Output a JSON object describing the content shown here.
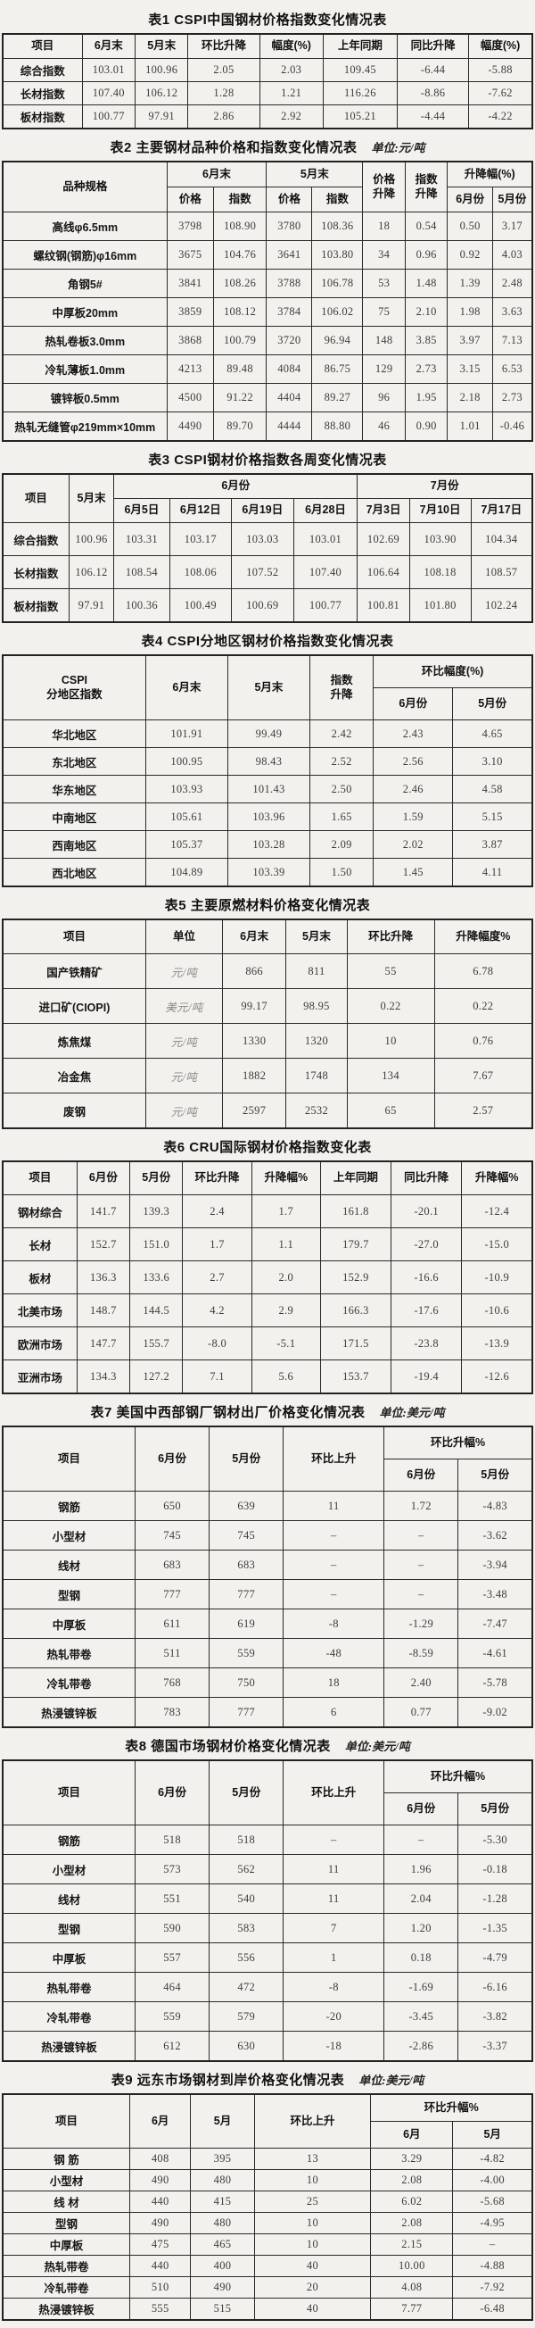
{
  "tables": [
    {
      "id": "t1",
      "title": "表1  CSPI中国钢材价格指数变化情况表",
      "unit": "",
      "header": [
        [
          {
            "t": "项目"
          },
          {
            "t": "6月末"
          },
          {
            "t": "5月末"
          },
          {
            "t": "环比升降"
          },
          {
            "t": "幅度(%)"
          },
          {
            "t": "上年同期"
          },
          {
            "t": "同比升降"
          },
          {
            "t": "幅度(%)"
          }
        ]
      ],
      "rows": [
        [
          "综合指数",
          "103.01",
          "100.96",
          "2.05",
          "2.03",
          "109.45",
          "-6.44",
          "-5.88"
        ],
        [
          "长材指数",
          "107.40",
          "106.12",
          "1.28",
          "1.21",
          "116.26",
          "-8.86",
          "-7.62"
        ],
        [
          "板材指数",
          "100.77",
          "97.91",
          "2.86",
          "2.92",
          "105.21",
          "-4.44",
          "-4.22"
        ]
      ]
    },
    {
      "id": "t2",
      "title": "表2  主要钢材品种价格和指数变化情况表",
      "unit": "单位:元/吨",
      "header": [
        [
          {
            "t": "品种规格",
            "rs": 2
          },
          {
            "t": "6月末",
            "cs": 2
          },
          {
            "t": "5月末",
            "cs": 2
          },
          {
            "t": "价格\n升降",
            "rs": 2
          },
          {
            "t": "指数\n升降",
            "rs": 2
          },
          {
            "t": "升降幅(%)",
            "cs": 2
          }
        ],
        [
          {
            "t": "价格"
          },
          {
            "t": "指数"
          },
          {
            "t": "价格"
          },
          {
            "t": "指数"
          },
          {
            "t": "6月份"
          },
          {
            "t": "5月份"
          }
        ]
      ],
      "rows": [
        [
          "高线φ6.5mm",
          "3798",
          "108.90",
          "3780",
          "108.36",
          "18",
          "0.54",
          "0.50",
          "3.17"
        ],
        [
          "螺纹钢(钢筋)φ16mm",
          "3675",
          "104.76",
          "3641",
          "103.80",
          "34",
          "0.96",
          "0.92",
          "4.03"
        ],
        [
          "角钢5#",
          "3841",
          "108.26",
          "3788",
          "106.78",
          "53",
          "1.48",
          "1.39",
          "2.48"
        ],
        [
          "中厚板20mm",
          "3859",
          "108.12",
          "3784",
          "106.02",
          "75",
          "2.10",
          "1.98",
          "3.63"
        ],
        [
          "热轧卷板3.0mm",
          "3868",
          "100.79",
          "3720",
          "96.94",
          "148",
          "3.85",
          "3.97",
          "7.13"
        ],
        [
          "冷轧薄板1.0mm",
          "4213",
          "89.48",
          "4084",
          "86.75",
          "129",
          "2.73",
          "3.15",
          "6.53"
        ],
        [
          "镀锌板0.5mm",
          "4500",
          "91.22",
          "4404",
          "89.27",
          "96",
          "1.95",
          "2.18",
          "2.73"
        ],
        [
          "热轧无缝管φ219mm×10mm",
          "4490",
          "89.70",
          "4444",
          "88.80",
          "46",
          "0.90",
          "1.01",
          "-0.46"
        ]
      ]
    },
    {
      "id": "t3",
      "title": "表3  CSPI钢材价格指数各周变化情况表",
      "unit": "",
      "header": [
        [
          {
            "t": "项目",
            "rs": 2
          },
          {
            "t": "5月末",
            "rs": 2
          },
          {
            "t": "6月份",
            "cs": 4
          },
          {
            "t": "7月份",
            "cs": 3
          }
        ],
        [
          {
            "t": "6月5日"
          },
          {
            "t": "6月12日"
          },
          {
            "t": "6月19日"
          },
          {
            "t": "6月28日"
          },
          {
            "t": "7月3日"
          },
          {
            "t": "7月10日"
          },
          {
            "t": "7月17日"
          }
        ]
      ],
      "rows": [
        [
          "综合指数",
          "100.96",
          "103.31",
          "103.17",
          "103.03",
          "103.01",
          "102.69",
          "103.90",
          "104.34"
        ],
        [
          "长材指数",
          "106.12",
          "108.54",
          "108.06",
          "107.52",
          "107.40",
          "106.64",
          "108.18",
          "108.57"
        ],
        [
          "板材指数",
          "97.91",
          "100.36",
          "100.49",
          "100.69",
          "100.77",
          "100.81",
          "101.80",
          "102.24"
        ]
      ]
    },
    {
      "id": "t4",
      "title": "表4  CSPI分地区钢材价格指数变化情况表",
      "unit": "",
      "header": [
        [
          {
            "t": "CSPI\n分地区指数",
            "rs": 2
          },
          {
            "t": "6月末",
            "rs": 2
          },
          {
            "t": "5月末",
            "rs": 2
          },
          {
            "t": "指数\n升降",
            "rs": 2
          },
          {
            "t": "环比幅度(%)",
            "cs": 2
          }
        ],
        [
          {
            "t": "6月份"
          },
          {
            "t": "5月份"
          }
        ]
      ],
      "rows": [
        [
          "华北地区",
          "101.91",
          "99.49",
          "2.42",
          "2.43",
          "4.65"
        ],
        [
          "东北地区",
          "100.95",
          "98.43",
          "2.52",
          "2.56",
          "3.10"
        ],
        [
          "华东地区",
          "103.93",
          "101.43",
          "2.50",
          "2.46",
          "4.58"
        ],
        [
          "中南地区",
          "105.61",
          "103.96",
          "1.65",
          "1.59",
          "5.15"
        ],
        [
          "西南地区",
          "105.37",
          "103.28",
          "2.09",
          "2.02",
          "3.87"
        ],
        [
          "西北地区",
          "104.89",
          "103.39",
          "1.50",
          "1.45",
          "4.11"
        ]
      ]
    },
    {
      "id": "t5",
      "title": "表5  主要原燃材料价格变化情况表",
      "unit": "",
      "unit_col": 1,
      "header": [
        [
          {
            "t": "项目"
          },
          {
            "t": "单位"
          },
          {
            "t": "6月末"
          },
          {
            "t": "5月末"
          },
          {
            "t": "环比升降"
          },
          {
            "t": "升降幅度%"
          }
        ]
      ],
      "rows": [
        [
          "国产铁精矿",
          "元/吨",
          "866",
          "811",
          "55",
          "6.78"
        ],
        [
          "进口矿(CIOPI)",
          "美元/吨",
          "99.17",
          "98.95",
          "0.22",
          "0.22"
        ],
        [
          "炼焦煤",
          "元/吨",
          "1330",
          "1320",
          "10",
          "0.76"
        ],
        [
          "冶金焦",
          "元/吨",
          "1882",
          "1748",
          "134",
          "7.67"
        ],
        [
          "废钢",
          "元/吨",
          "2597",
          "2532",
          "65",
          "2.57"
        ]
      ]
    },
    {
      "id": "t6",
      "title": "表6  CRU国际钢材价格指数变化表",
      "unit": "",
      "header": [
        [
          {
            "t": "项目"
          },
          {
            "t": "6月份"
          },
          {
            "t": "5月份"
          },
          {
            "t": "环比升降"
          },
          {
            "t": "升降幅%"
          },
          {
            "t": "上年同期"
          },
          {
            "t": "同比升降"
          },
          {
            "t": "升降幅%"
          }
        ]
      ],
      "rows": [
        [
          "钢材综合",
          "141.7",
          "139.3",
          "2.4",
          "1.7",
          "161.8",
          "-20.1",
          "-12.4"
        ],
        [
          "长材",
          "152.7",
          "151.0",
          "1.7",
          "1.1",
          "179.7",
          "-27.0",
          "-15.0"
        ],
        [
          "板材",
          "136.3",
          "133.6",
          "2.7",
          "2.0",
          "152.9",
          "-16.6",
          "-10.9"
        ],
        [
          "北美市场",
          "148.7",
          "144.5",
          "4.2",
          "2.9",
          "166.3",
          "-17.6",
          "-10.6"
        ],
        [
          "欧洲市场",
          "147.7",
          "155.7",
          "-8.0",
          "-5.1",
          "171.5",
          "-23.8",
          "-13.9"
        ],
        [
          "亚洲市场",
          "134.3",
          "127.2",
          "7.1",
          "5.6",
          "153.7",
          "-19.4",
          "-12.6"
        ]
      ]
    },
    {
      "id": "t7",
      "title": "表7  美国中西部钢厂钢材出厂价格变化情况表",
      "unit": "单位:美元/吨",
      "header": [
        [
          {
            "t": "项目",
            "rs": 2
          },
          {
            "t": "6月份",
            "rs": 2
          },
          {
            "t": "5月份",
            "rs": 2
          },
          {
            "t": "环比上升",
            "rs": 2
          },
          {
            "t": "环比升幅%",
            "cs": 2
          }
        ],
        [
          {
            "t": "6月份"
          },
          {
            "t": "5月份"
          }
        ]
      ],
      "rows": [
        [
          "钢筋",
          "650",
          "639",
          "11",
          "1.72",
          "-4.83"
        ],
        [
          "小型材",
          "745",
          "745",
          "–",
          "–",
          "-3.62"
        ],
        [
          "线材",
          "683",
          "683",
          "–",
          "–",
          "-3.94"
        ],
        [
          "型钢",
          "777",
          "777",
          "–",
          "–",
          "-3.48"
        ],
        [
          "中厚板",
          "611",
          "619",
          "-8",
          "-1.29",
          "-7.47"
        ],
        [
          "热轧带卷",
          "511",
          "559",
          "-48",
          "-8.59",
          "-4.61"
        ],
        [
          "冷轧带卷",
          "768",
          "750",
          "18",
          "2.40",
          "-5.78"
        ],
        [
          "热浸镀锌板",
          "783",
          "777",
          "6",
          "0.77",
          "-9.02"
        ]
      ]
    },
    {
      "id": "t8",
      "title": "表8  德国市场钢材价格变化情况表",
      "unit": "单位:美元/吨",
      "header": [
        [
          {
            "t": "项目",
            "rs": 2
          },
          {
            "t": "6月份",
            "rs": 2
          },
          {
            "t": "5月份",
            "rs": 2
          },
          {
            "t": "环比上升",
            "rs": 2
          },
          {
            "t": "环比升幅%",
            "cs": 2
          }
        ],
        [
          {
            "t": "6月份"
          },
          {
            "t": "5月份"
          }
        ]
      ],
      "rows": [
        [
          "钢筋",
          "518",
          "518",
          "–",
          "–",
          "-5.30"
        ],
        [
          "小型材",
          "573",
          "562",
          "11",
          "1.96",
          "-0.18"
        ],
        [
          "线材",
          "551",
          "540",
          "11",
          "2.04",
          "-1.28"
        ],
        [
          "型钢",
          "590",
          "583",
          "7",
          "1.20",
          "-1.35"
        ],
        [
          "中厚板",
          "557",
          "556",
          "1",
          "0.18",
          "-4.79"
        ],
        [
          "热轧带卷",
          "464",
          "472",
          "-8",
          "-1.69",
          "-6.16"
        ],
        [
          "冷轧带卷",
          "559",
          "579",
          "-20",
          "-3.45",
          "-3.82"
        ],
        [
          "热浸镀锌板",
          "612",
          "630",
          "-18",
          "-2.86",
          "-3.37"
        ]
      ]
    },
    {
      "id": "t9",
      "title": "表9  远东市场钢材到岸价格变化情况表",
      "unit": "单位:美元/吨",
      "header": [
        [
          {
            "t": "项目",
            "rs": 2
          },
          {
            "t": "6月",
            "rs": 2
          },
          {
            "t": "5月",
            "rs": 2
          },
          {
            "t": "环比上升",
            "rs": 2
          },
          {
            "t": "环比升幅%",
            "cs": 2
          }
        ],
        [
          {
            "t": "6月"
          },
          {
            "t": "5月"
          }
        ]
      ],
      "rows": [
        [
          "钢 筋",
          "408",
          "395",
          "13",
          "3.29",
          "-4.82"
        ],
        [
          "小型材",
          "490",
          "480",
          "10",
          "2.08",
          "-4.00"
        ],
        [
          "线 材",
          "440",
          "415",
          "25",
          "6.02",
          "-5.68"
        ],
        [
          "型钢",
          "490",
          "480",
          "10",
          "2.08",
          "-4.95"
        ],
        [
          "中厚板",
          "475",
          "465",
          "10",
          "2.15",
          "–"
        ],
        [
          "热轧带卷",
          "440",
          "400",
          "40",
          "10.00",
          "-4.88"
        ],
        [
          "冷轧带卷",
          "510",
          "490",
          "20",
          "4.08",
          "-7.92"
        ],
        [
          "热浸镀锌板",
          "555",
          "515",
          "40",
          "7.77",
          "-6.48"
        ]
      ]
    }
  ]
}
